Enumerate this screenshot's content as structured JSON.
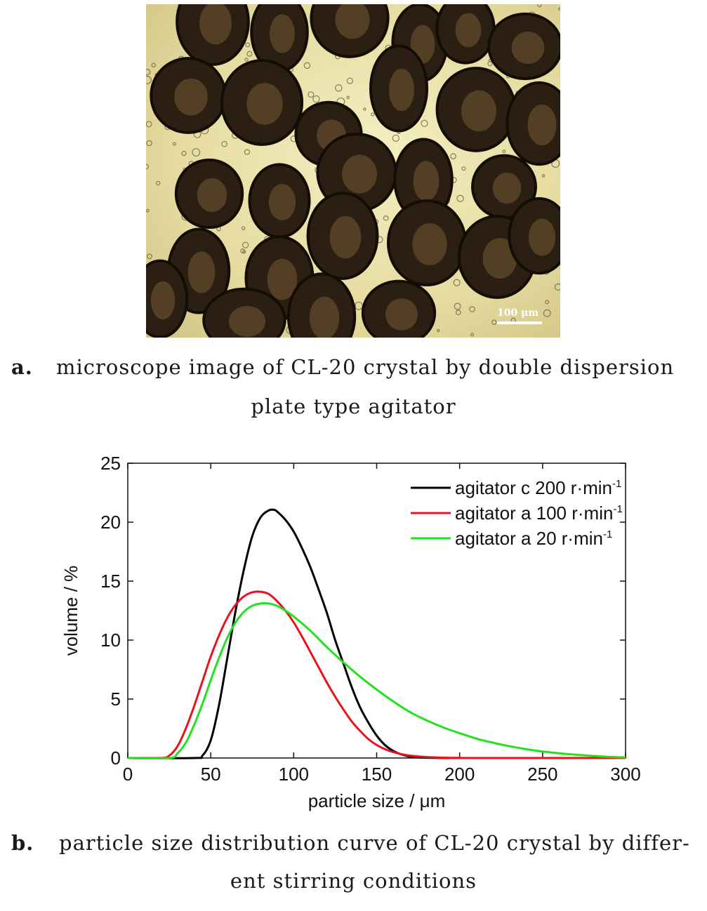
{
  "figure_a": {
    "scale_bar_label": "100 μm",
    "caption_tag": "a.",
    "caption_line1": "microscope image of CL-20 crystal by double dispersion",
    "caption_line2": "plate type agitator"
  },
  "figure_b": {
    "caption_tag": "b.",
    "caption_line1": "particle size distribution curve of CL-20 crystal by differ-",
    "caption_line2": "ent stirring conditions"
  },
  "chart_data": {
    "type": "line",
    "xlabel": "particle size / μm",
    "ylabel": "volume / %",
    "xlim": [
      0,
      300
    ],
    "ylim": [
      0,
      25
    ],
    "xticks": [
      0,
      50,
      100,
      150,
      200,
      250,
      300
    ],
    "yticks": [
      0,
      5,
      10,
      15,
      20,
      25
    ],
    "legend_position": "top-right",
    "grid": false,
    "series": [
      {
        "name": "agitator c 200 r·min",
        "superscript": "-1",
        "color": "#000000",
        "x": [
          0,
          40,
          45,
          50,
          55,
          60,
          65,
          70,
          75,
          80,
          85,
          88,
          90,
          95,
          100,
          105,
          110,
          115,
          120,
          125,
          130,
          135,
          140,
          145,
          150,
          155,
          160,
          165,
          170,
          175,
          180,
          190,
          200,
          300
        ],
        "y": [
          0,
          0,
          0.2,
          1.5,
          4.5,
          8.5,
          12.5,
          16.0,
          18.8,
          20.4,
          21.0,
          21.05,
          20.9,
          20.2,
          19.2,
          17.8,
          16.2,
          14.3,
          12.3,
          10.0,
          8.0,
          6.0,
          4.3,
          3.0,
          1.9,
          1.1,
          0.6,
          0.3,
          0.12,
          0.05,
          0.02,
          0,
          0,
          0
        ]
      },
      {
        "name": "agitator a 100 r·min",
        "superscript": "-1",
        "color": "#e8141c",
        "x": [
          0,
          20,
          25,
          30,
          35,
          40,
          45,
          50,
          55,
          60,
          65,
          70,
          75,
          80,
          85,
          90,
          95,
          100,
          105,
          110,
          115,
          120,
          125,
          130,
          135,
          140,
          145,
          150,
          155,
          160,
          165,
          170,
          180,
          190,
          200,
          210,
          300
        ],
        "y": [
          0,
          0,
          0.2,
          1.0,
          2.5,
          4.4,
          6.5,
          8.6,
          10.4,
          11.9,
          13.0,
          13.7,
          14.05,
          14.1,
          13.9,
          13.3,
          12.5,
          11.5,
          10.3,
          9.0,
          7.7,
          6.4,
          5.2,
          4.1,
          3.1,
          2.3,
          1.6,
          1.1,
          0.75,
          0.5,
          0.32,
          0.2,
          0.08,
          0.03,
          0.01,
          0,
          0
        ]
      },
      {
        "name": "agitator a 20 r·min",
        "superscript": "-1",
        "color": "#22e21e",
        "x": [
          0,
          25,
          30,
          35,
          40,
          45,
          50,
          55,
          60,
          65,
          70,
          75,
          80,
          85,
          90,
          95,
          100,
          110,
          120,
          130,
          140,
          150,
          160,
          170,
          180,
          190,
          200,
          210,
          220,
          230,
          240,
          250,
          260,
          270,
          280,
          290,
          300
        ],
        "y": [
          0,
          0,
          0.4,
          1.3,
          2.8,
          4.6,
          6.6,
          8.5,
          10.2,
          11.5,
          12.4,
          12.9,
          13.1,
          13.1,
          12.9,
          12.5,
          12.0,
          10.8,
          9.4,
          8.1,
          6.9,
          5.8,
          4.8,
          3.9,
          3.2,
          2.6,
          2.1,
          1.65,
          1.3,
          1.0,
          0.75,
          0.55,
          0.4,
          0.28,
          0.18,
          0.1,
          0.05
        ]
      }
    ]
  }
}
